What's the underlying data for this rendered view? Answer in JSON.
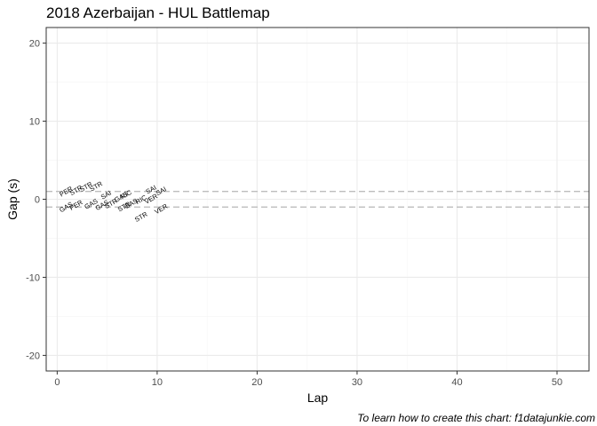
{
  "chart_data": {
    "type": "scatter",
    "title": "2018 Azerbaijan - HUL Battlemap",
    "xlabel": "Lap",
    "ylabel": "Gap (s)",
    "caption": "To learn how to create this chart: f1datajunkie.com",
    "xlim": [
      -1.1,
      53.2
    ],
    "ylim": [
      -22,
      22
    ],
    "x_ticks": [
      0,
      10,
      20,
      30,
      40,
      50
    ],
    "x_tick_labels": [
      "0",
      "10",
      "20",
      "30",
      "40",
      "50"
    ],
    "y_ticks": [
      -20,
      -10,
      0,
      10,
      20
    ],
    "y_tick_labels": [
      "-20",
      "-10",
      "0",
      "10",
      "20"
    ],
    "grid": true,
    "reference_lines": [
      1,
      -1
    ],
    "colors": {
      "panel_border": "#333333",
      "grid_major": "#ebebeb",
      "grid_minor": "#f5f5f5",
      "reference_line": "#bdbdbd",
      "tick_label": "#4d4d4d"
    },
    "points": [
      {
        "lap": 1,
        "gap": 0.75,
        "label": "PER"
      },
      {
        "lap": 1,
        "gap": -1.25,
        "label": "GAS"
      },
      {
        "lap": 2,
        "gap": 0.9,
        "label": "STR"
      },
      {
        "lap": 2,
        "gap": -1.0,
        "label": "PER"
      },
      {
        "lap": 3,
        "gap": 1.35,
        "label": "STR"
      },
      {
        "lap": 4,
        "gap": 1.4,
        "label": "STR"
      },
      {
        "lap": 3.5,
        "gap": -0.85,
        "label": "GAS"
      },
      {
        "lap": 5,
        "gap": 0.3,
        "label": "SAI"
      },
      {
        "lap": 4.6,
        "gap": -1.0,
        "label": "GAS"
      },
      {
        "lap": 5.5,
        "gap": -0.8,
        "label": "STR"
      },
      {
        "lap": 6.5,
        "gap": 0.05,
        "label": "GAS"
      },
      {
        "lap": 7,
        "gap": 0.35,
        "label": "RIC"
      },
      {
        "lap": 6.8,
        "gap": -1.2,
        "label": "STR"
      },
      {
        "lap": 7.5,
        "gap": -0.8,
        "label": "GAS"
      },
      {
        "lap": 8.5,
        "gap": -0.3,
        "label": "RIC"
      },
      {
        "lap": 9.5,
        "gap": 1.0,
        "label": "SAI"
      },
      {
        "lap": 9.5,
        "gap": -0.2,
        "label": "VER"
      },
      {
        "lap": 10.5,
        "gap": 0.8,
        "label": "SAI"
      },
      {
        "lap": 8.5,
        "gap": -2.5,
        "label": "STR"
      },
      {
        "lap": 10.5,
        "gap": -1.5,
        "label": "VER"
      }
    ]
  }
}
